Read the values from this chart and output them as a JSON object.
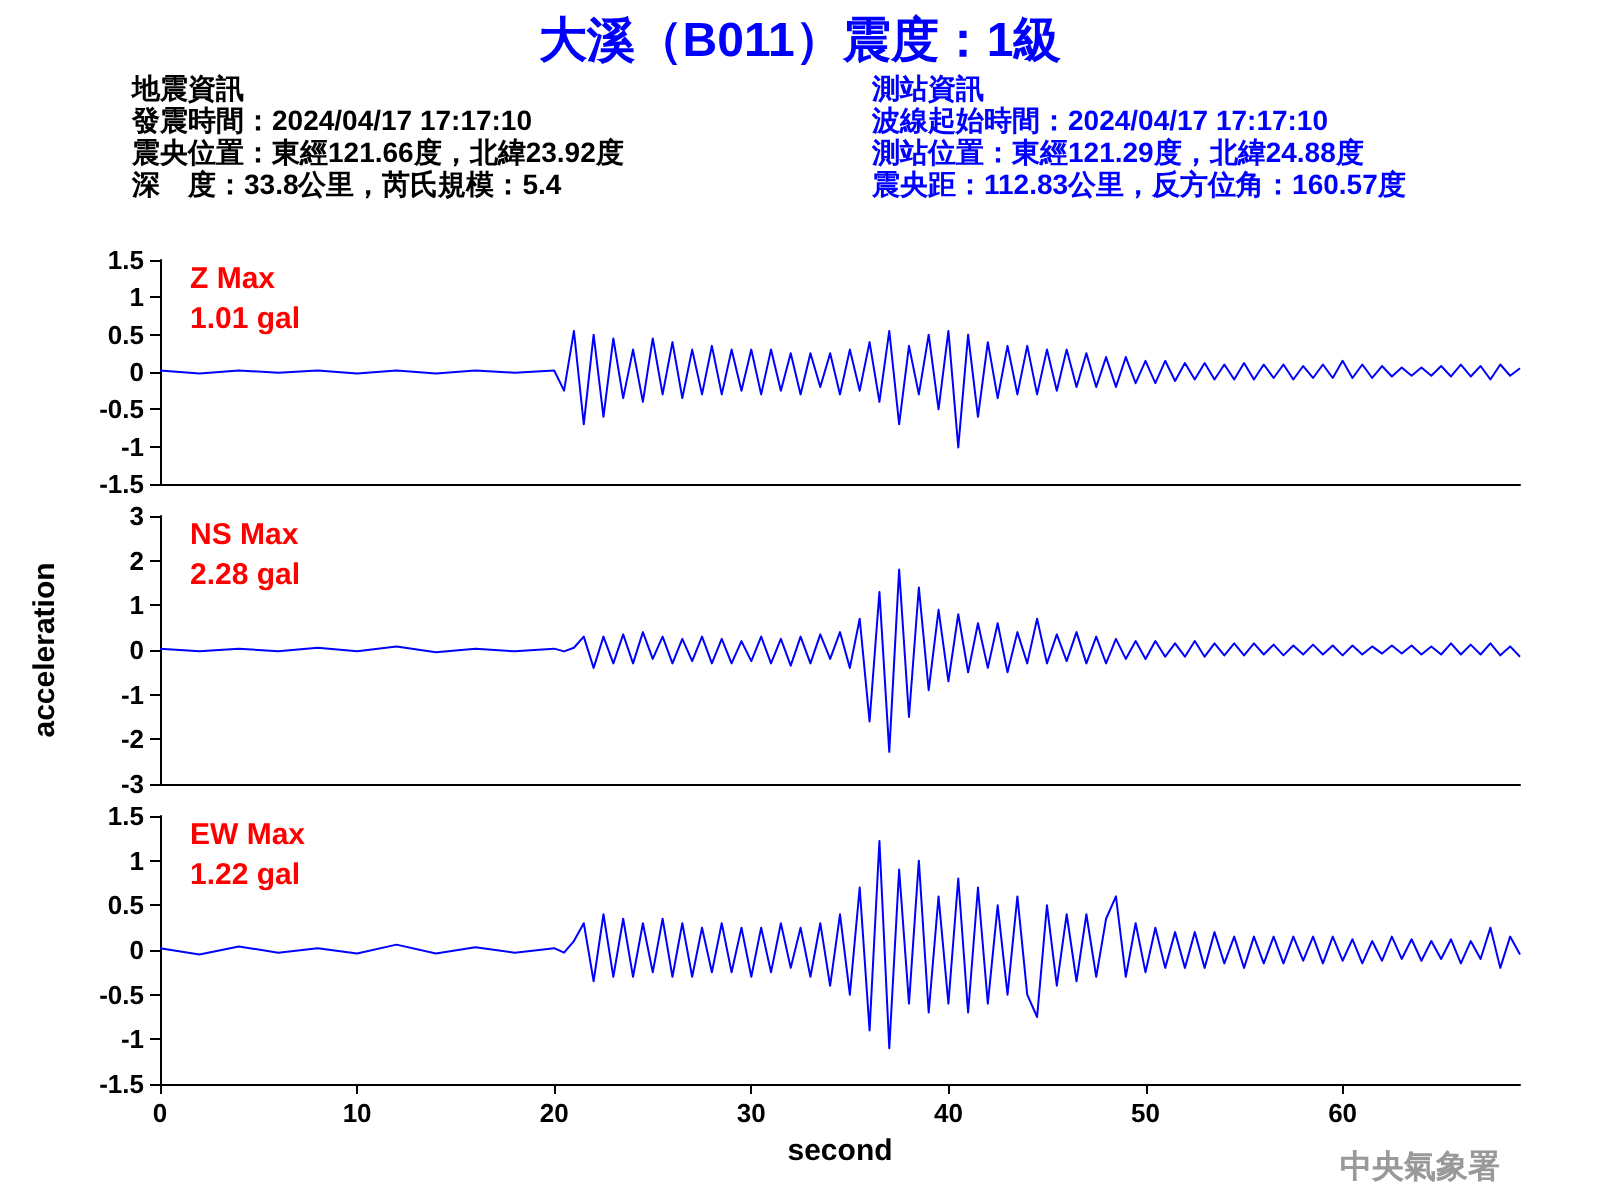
{
  "chart_data": [
    {
      "type": "line",
      "title": "大溪（B011）震度：1級",
      "color": "#0000ff",
      "xlim": [
        0,
        69
      ],
      "xticks": [
        0,
        10,
        20,
        30,
        40,
        50,
        60
      ],
      "ylim": [
        -1.5,
        1.5
      ],
      "yticks": [
        -1.5,
        -1,
        -0.5,
        0,
        0.5,
        1,
        1.5
      ],
      "tick_labels": "y",
      "annotations": [
        "Z Max",
        "1.01 gal",
        "地震資訊",
        "發震時間：2024/04/17 17:17:10",
        "震央位置：東經121.66度，北緯23.92度",
        "深　度：33.8公里，芮氏規模：5.4",
        "測站資訊",
        "波線起始時間：2024/04/17 17:17:10",
        "測站位置：東經121.29度，北緯24.88度",
        "震央距：112.83公里，反方位角：160.57度"
      ],
      "x": [
        0,
        2,
        4,
        6,
        8,
        10,
        12,
        14,
        16,
        18,
        20,
        20.5,
        21,
        21.5,
        22,
        22.5,
        23,
        23.5,
        24,
        24.5,
        25,
        25.5,
        26,
        26.5,
        27,
        27.5,
        28,
        28.5,
        29,
        29.5,
        30,
        30.5,
        31,
        31.5,
        32,
        32.5,
        33,
        33.5,
        34,
        34.5,
        35,
        35.5,
        36,
        36.5,
        37,
        37.5,
        38,
        38.5,
        39,
        39.5,
        40,
        40.5,
        41,
        41.5,
        42,
        42.5,
        43,
        43.5,
        44,
        44.5,
        45,
        45.5,
        46,
        46.5,
        47,
        47.5,
        48,
        48.5,
        49,
        49.5,
        50,
        50.5,
        51,
        51.5,
        52,
        52.5,
        53,
        53.5,
        54,
        54.5,
        55,
        55.5,
        56,
        56.5,
        57,
        57.5,
        58,
        58.5,
        59,
        59.5,
        60,
        60.5,
        61,
        61.5,
        62,
        62.5,
        63,
        63.5,
        64,
        64.5,
        65,
        65.5,
        66,
        66.5,
        67,
        67.5,
        68,
        68.5,
        69
      ],
      "values": [
        0.02,
        -0.02,
        0.02,
        -0.01,
        0.02,
        -0.02,
        0.02,
        -0.02,
        0.02,
        -0.01,
        0.02,
        -0.25,
        0.55,
        -0.7,
        0.5,
        -0.6,
        0.45,
        -0.35,
        0.3,
        -0.4,
        0.45,
        -0.3,
        0.4,
        -0.35,
        0.3,
        -0.3,
        0.35,
        -0.3,
        0.3,
        -0.25,
        0.3,
        -0.3,
        0.3,
        -0.25,
        0.25,
        -0.3,
        0.25,
        -0.2,
        0.25,
        -0.3,
        0.3,
        -0.25,
        0.4,
        -0.4,
        0.55,
        -0.7,
        0.35,
        -0.3,
        0.5,
        -0.5,
        0.55,
        -1.01,
        0.5,
        -0.6,
        0.4,
        -0.35,
        0.35,
        -0.3,
        0.35,
        -0.3,
        0.3,
        -0.25,
        0.3,
        -0.2,
        0.25,
        -0.2,
        0.2,
        -0.2,
        0.2,
        -0.15,
        0.15,
        -0.15,
        0.15,
        -0.12,
        0.12,
        -0.1,
        0.12,
        -0.1,
        0.1,
        -0.1,
        0.12,
        -0.1,
        0.1,
        -0.08,
        0.1,
        -0.1,
        0.08,
        -0.08,
        0.1,
        -0.08,
        0.15,
        -0.08,
        0.1,
        -0.08,
        0.08,
        -0.06,
        0.06,
        -0.05,
        0.06,
        -0.05,
        0.08,
        -0.06,
        0.1,
        -0.06,
        0.08,
        -0.1,
        0.1,
        -0.05,
        0.05
      ]
    },
    {
      "type": "line",
      "ylabel": "acceleration",
      "color": "#0000ff",
      "xlim": [
        0,
        69
      ],
      "xticks": [
        0,
        10,
        20,
        30,
        40,
        50,
        60
      ],
      "ylim": [
        -3,
        3
      ],
      "yticks": [
        -3,
        -2,
        -1,
        0,
        1,
        2,
        3
      ],
      "tick_labels": "y",
      "annotations": [
        "NS Max",
        "2.28 gal"
      ],
      "x": [
        0,
        2,
        4,
        6,
        8,
        10,
        12,
        14,
        16,
        18,
        20,
        20.5,
        21,
        21.5,
        22,
        22.5,
        23,
        23.5,
        24,
        24.5,
        25,
        25.5,
        26,
        26.5,
        27,
        27.5,
        28,
        28.5,
        29,
        29.5,
        30,
        30.5,
        31,
        31.5,
        32,
        32.5,
        33,
        33.5,
        34,
        34.5,
        35,
        35.5,
        36,
        36.5,
        37,
        37.5,
        38,
        38.5,
        39,
        39.5,
        40,
        40.5,
        41,
        41.5,
        42,
        42.5,
        43,
        43.5,
        44,
        44.5,
        45,
        45.5,
        46,
        46.5,
        47,
        47.5,
        48,
        48.5,
        49,
        49.5,
        50,
        50.5,
        51,
        51.5,
        52,
        52.5,
        53,
        53.5,
        54,
        54.5,
        55,
        55.5,
        56,
        56.5,
        57,
        57.5,
        58,
        58.5,
        59,
        59.5,
        60,
        60.5,
        61,
        61.5,
        62,
        62.5,
        63,
        63.5,
        64,
        64.5,
        65,
        65.5,
        66,
        66.5,
        67,
        67.5,
        68,
        68.5,
        69
      ],
      "values": [
        0.03,
        -0.03,
        0.03,
        -0.03,
        0.05,
        -0.03,
        0.08,
        -0.05,
        0.03,
        -0.03,
        0.03,
        -0.03,
        0.05,
        0.3,
        -0.4,
        0.3,
        -0.3,
        0.35,
        -0.3,
        0.4,
        -0.2,
        0.3,
        -0.3,
        0.25,
        -0.25,
        0.3,
        -0.3,
        0.25,
        -0.3,
        0.2,
        -0.25,
        0.3,
        -0.3,
        0.25,
        -0.35,
        0.3,
        -0.3,
        0.35,
        -0.2,
        0.4,
        -0.4,
        0.7,
        -1.6,
        1.3,
        -2.28,
        1.8,
        -1.5,
        1.4,
        -0.9,
        0.9,
        -0.7,
        0.8,
        -0.5,
        0.6,
        -0.4,
        0.6,
        -0.5,
        0.4,
        -0.3,
        0.7,
        -0.3,
        0.35,
        -0.25,
        0.4,
        -0.3,
        0.3,
        -0.3,
        0.25,
        -0.2,
        0.2,
        -0.2,
        0.2,
        -0.15,
        0.15,
        -0.15,
        0.2,
        -0.15,
        0.15,
        -0.12,
        0.15,
        -0.12,
        0.15,
        -0.1,
        0.12,
        -0.12,
        0.1,
        -0.1,
        0.12,
        -0.1,
        0.1,
        -0.12,
        0.1,
        -0.1,
        0.08,
        -0.08,
        0.1,
        -0.08,
        0.1,
        -0.1,
        0.08,
        -0.1,
        0.15,
        -0.1,
        0.12,
        -0.1,
        0.15,
        -0.12,
        0.08,
        -0.15
      ]
    },
    {
      "type": "line",
      "xlabel": "second",
      "color": "#0000ff",
      "xlim": [
        0,
        69
      ],
      "xticks": [
        0,
        10,
        20,
        30,
        40,
        50,
        60
      ],
      "ylim": [
        -1.5,
        1.5
      ],
      "yticks": [
        -1.5,
        -1,
        -0.5,
        0,
        0.5,
        1,
        1.5
      ],
      "annotations": [
        "EW Max",
        "1.22 gal",
        "中央氣象署"
      ],
      "x": [
        0,
        2,
        4,
        6,
        8,
        10,
        12,
        14,
        16,
        18,
        20,
        20.5,
        21,
        21.5,
        22,
        22.5,
        23,
        23.5,
        24,
        24.5,
        25,
        25.5,
        26,
        26.5,
        27,
        27.5,
        28,
        28.5,
        29,
        29.5,
        30,
        30.5,
        31,
        31.5,
        32,
        32.5,
        33,
        33.5,
        34,
        34.5,
        35,
        35.5,
        36,
        36.5,
        37,
        37.5,
        38,
        38.5,
        39,
        39.5,
        40,
        40.5,
        41,
        41.5,
        42,
        42.5,
        43,
        43.5,
        44,
        44.5,
        45,
        45.5,
        46,
        46.5,
        47,
        47.5,
        48,
        48.5,
        49,
        49.5,
        50,
        50.5,
        51,
        51.5,
        52,
        52.5,
        53,
        53.5,
        54,
        54.5,
        55,
        55.5,
        56,
        56.5,
        57,
        57.5,
        58,
        58.5,
        59,
        59.5,
        60,
        60.5,
        61,
        61.5,
        62,
        62.5,
        63,
        63.5,
        64,
        64.5,
        65,
        65.5,
        66,
        66.5,
        67,
        67.5,
        68,
        68.5,
        69
      ],
      "values": [
        0.02,
        -0.05,
        0.04,
        -0.03,
        0.02,
        -0.04,
        0.06,
        -0.04,
        0.03,
        -0.03,
        0.02,
        -0.03,
        0.1,
        0.3,
        -0.35,
        0.4,
        -0.3,
        0.35,
        -0.3,
        0.3,
        -0.25,
        0.35,
        -0.3,
        0.3,
        -0.3,
        0.25,
        -0.25,
        0.3,
        -0.25,
        0.25,
        -0.3,
        0.25,
        -0.25,
        0.3,
        -0.2,
        0.25,
        -0.3,
        0.3,
        -0.4,
        0.4,
        -0.5,
        0.7,
        -0.9,
        1.22,
        -1.1,
        0.9,
        -0.6,
        1.0,
        -0.7,
        0.6,
        -0.6,
        0.8,
        -0.7,
        0.7,
        -0.6,
        0.5,
        -0.5,
        0.6,
        -0.5,
        -0.75,
        0.5,
        -0.4,
        0.4,
        -0.35,
        0.4,
        -0.3,
        0.35,
        0.6,
        -0.3,
        0.3,
        -0.25,
        0.25,
        -0.2,
        0.2,
        -0.2,
        0.2,
        -0.2,
        0.2,
        -0.15,
        0.15,
        -0.2,
        0.15,
        -0.15,
        0.15,
        -0.15,
        0.15,
        -0.12,
        0.15,
        -0.15,
        0.15,
        -0.12,
        0.12,
        -0.15,
        0.1,
        -0.12,
        0.15,
        -0.1,
        0.12,
        -0.12,
        0.1,
        -0.1,
        0.12,
        -0.15,
        0.1,
        -0.1,
        0.25,
        -0.2,
        0.15,
        -0.05
      ]
    }
  ]
}
